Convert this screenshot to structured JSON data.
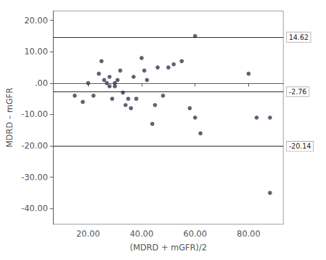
{
  "chart_data": {
    "type": "scatter",
    "xlabel": "(MDRD + mGFR)/2",
    "ylabel": "MDRD – mGFR",
    "x": [
      15,
      18,
      20,
      22,
      24,
      25,
      26,
      27,
      28,
      28,
      29,
      30,
      30,
      31,
      32,
      33,
      34,
      35,
      36,
      37,
      38,
      40,
      41,
      42,
      44,
      45,
      46,
      48,
      50,
      52,
      55,
      58,
      60,
      60,
      62,
      80,
      83,
      88,
      88
    ],
    "values": [
      -4,
      -6,
      0,
      -4,
      3,
      7,
      1,
      0,
      -1,
      2,
      -5,
      -1,
      0,
      1,
      4,
      -3,
      -7,
      -5,
      -8,
      2,
      -5,
      8,
      4,
      1,
      -13,
      -7,
      5,
      -4,
      5,
      6,
      7,
      -8,
      15,
      -11,
      -16,
      3,
      -11,
      -35,
      -11
    ],
    "color": "#3a3a52",
    "hlines": [
      {
        "value": 14.62,
        "label": "14.62",
        "color": "#222222"
      },
      {
        "value": -2.76,
        "label": "-2.76",
        "color": "#222222"
      },
      {
        "value": -20.14,
        "label": "-20.14",
        "color": "#222222"
      }
    ],
    "xlim": [
      7,
      93
    ],
    "ylim": [
      -45,
      23
    ],
    "xticks": [
      {
        "value": 20,
        "label": "20.00"
      },
      {
        "value": 40,
        "label": "40.00"
      },
      {
        "value": 60,
        "label": "60.00"
      },
      {
        "value": 80,
        "label": "80.00"
      }
    ],
    "yticks": [
      {
        "value": -40,
        "label": "-40.00"
      },
      {
        "value": -30,
        "label": "-30.00"
      },
      {
        "value": -20,
        "label": "-20.00"
      },
      {
        "value": -10,
        "label": "-10.00"
      },
      {
        "value": 0,
        "label": ".00"
      },
      {
        "value": 10,
        "label": "10.00"
      },
      {
        "value": 20,
        "label": "20.00"
      }
    ],
    "grid": false
  }
}
